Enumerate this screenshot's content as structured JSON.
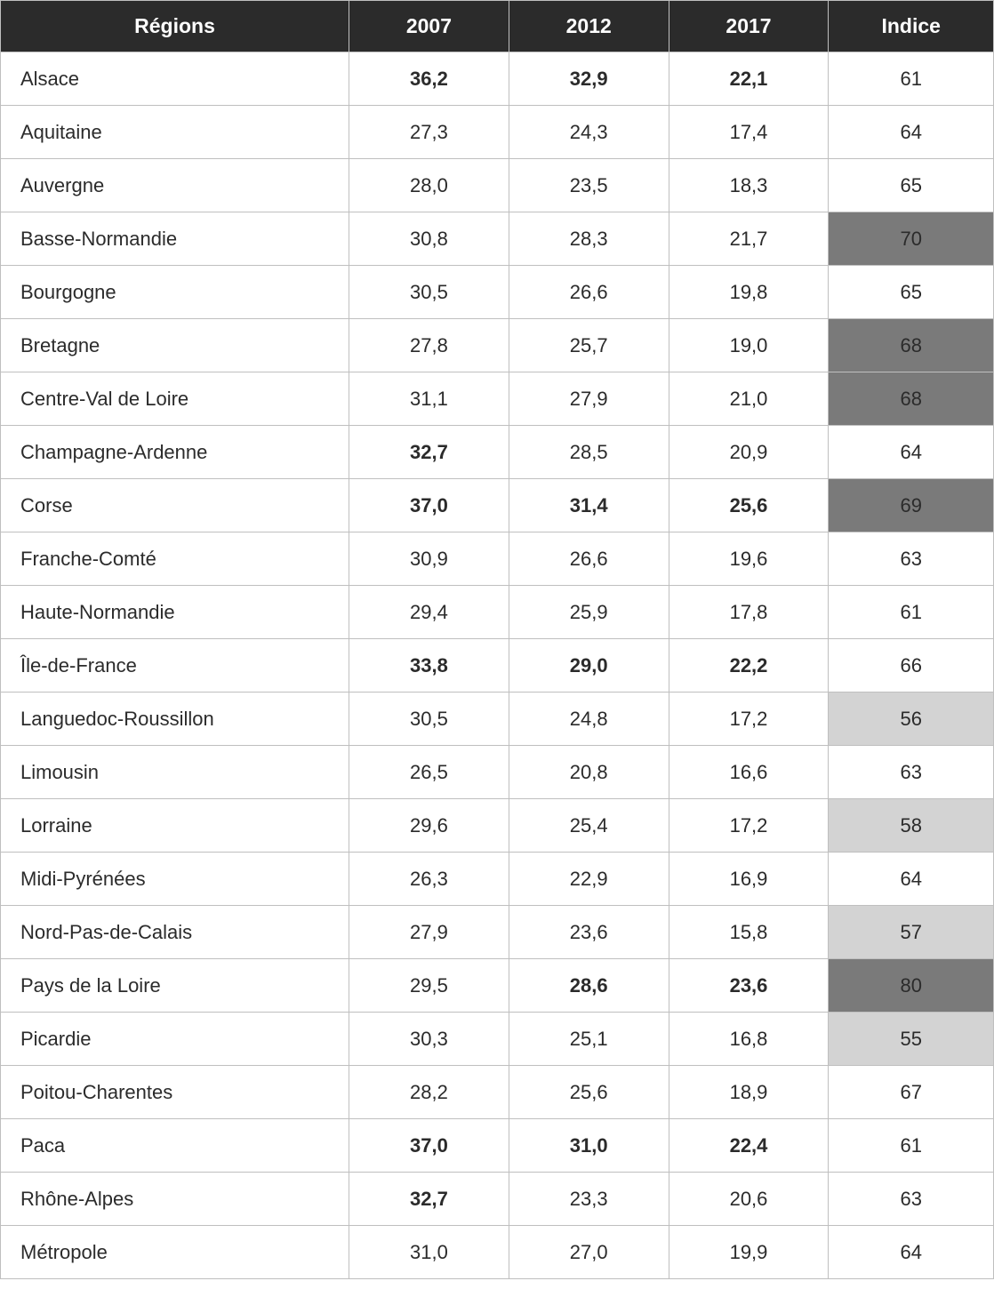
{
  "table": {
    "columns": [
      "Régions",
      "2007",
      "2012",
      "2017",
      "Indice"
    ],
    "header_bg": "#2b2b2b",
    "header_fg": "#ffffff",
    "border_color": "#bfbfbf",
    "highlight_dark": "#7a7a7a",
    "highlight_light": "#d3d3d3",
    "rows": [
      {
        "region": "Alsace",
        "y2007": "36,2",
        "b2007": true,
        "y2012": "32,9",
        "b2012": true,
        "y2017": "22,1",
        "b2017": true,
        "indice": "61",
        "indice_bg": null
      },
      {
        "region": "Aquitaine",
        "y2007": "27,3",
        "b2007": false,
        "y2012": "24,3",
        "b2012": false,
        "y2017": "17,4",
        "b2017": false,
        "indice": "64",
        "indice_bg": null
      },
      {
        "region": "Auvergne",
        "y2007": "28,0",
        "b2007": false,
        "y2012": "23,5",
        "b2012": false,
        "y2017": "18,3",
        "b2017": false,
        "indice": "65",
        "indice_bg": null
      },
      {
        "region": "Basse-Normandie",
        "y2007": "30,8",
        "b2007": false,
        "y2012": "28,3",
        "b2012": false,
        "y2017": "21,7",
        "b2017": false,
        "indice": "70",
        "indice_bg": "dark"
      },
      {
        "region": "Bourgogne",
        "y2007": "30,5",
        "b2007": false,
        "y2012": "26,6",
        "b2012": false,
        "y2017": "19,8",
        "b2017": false,
        "indice": "65",
        "indice_bg": null
      },
      {
        "region": "Bretagne",
        "y2007": "27,8",
        "b2007": false,
        "y2012": "25,7",
        "b2012": false,
        "y2017": "19,0",
        "b2017": false,
        "indice": "68",
        "indice_bg": "dark"
      },
      {
        "region": "Centre-Val de Loire",
        "y2007": "31,1",
        "b2007": false,
        "y2012": "27,9",
        "b2012": false,
        "y2017": "21,0",
        "b2017": false,
        "indice": "68",
        "indice_bg": "dark"
      },
      {
        "region": "Champagne-Ardenne",
        "y2007": "32,7",
        "b2007": true,
        "y2012": "28,5",
        "b2012": false,
        "y2017": "20,9",
        "b2017": false,
        "indice": "64",
        "indice_bg": null
      },
      {
        "region": "Corse",
        "y2007": "37,0",
        "b2007": true,
        "y2012": "31,4",
        "b2012": true,
        "y2017": "25,6",
        "b2017": true,
        "indice": "69",
        "indice_bg": "dark"
      },
      {
        "region": "Franche-Comté",
        "y2007": "30,9",
        "b2007": false,
        "y2012": "26,6",
        "b2012": false,
        "y2017": "19,6",
        "b2017": false,
        "indice": "63",
        "indice_bg": null
      },
      {
        "region": "Haute-Normandie",
        "y2007": "29,4",
        "b2007": false,
        "y2012": "25,9",
        "b2012": false,
        "y2017": "17,8",
        "b2017": false,
        "indice": "61",
        "indice_bg": null
      },
      {
        "region": "Île-de-France",
        "y2007": "33,8",
        "b2007": true,
        "y2012": "29,0",
        "b2012": true,
        "y2017": "22,2",
        "b2017": true,
        "indice": "66",
        "indice_bg": null
      },
      {
        "region": "Languedoc-Roussillon",
        "y2007": "30,5",
        "b2007": false,
        "y2012": "24,8",
        "b2012": false,
        "y2017": "17,2",
        "b2017": false,
        "indice": "56",
        "indice_bg": "light"
      },
      {
        "region": "Limousin",
        "y2007": "26,5",
        "b2007": false,
        "y2012": "20,8",
        "b2012": false,
        "y2017": "16,6",
        "b2017": false,
        "indice": "63",
        "indice_bg": null
      },
      {
        "region": "Lorraine",
        "y2007": "29,6",
        "b2007": false,
        "y2012": "25,4",
        "b2012": false,
        "y2017": "17,2",
        "b2017": false,
        "indice": "58",
        "indice_bg": "light"
      },
      {
        "region": "Midi-Pyrénées",
        "y2007": "26,3",
        "b2007": false,
        "y2012": "22,9",
        "b2012": false,
        "y2017": "16,9",
        "b2017": false,
        "indice": "64",
        "indice_bg": null
      },
      {
        "region": "Nord-Pas-de-Calais",
        "y2007": "27,9",
        "b2007": false,
        "y2012": "23,6",
        "b2012": false,
        "y2017": "15,8",
        "b2017": false,
        "indice": "57",
        "indice_bg": "light"
      },
      {
        "region": "Pays de la Loire",
        "y2007": "29,5",
        "b2007": false,
        "y2012": "28,6",
        "b2012": true,
        "y2017": "23,6",
        "b2017": true,
        "indice": "80",
        "indice_bg": "dark"
      },
      {
        "region": "Picardie",
        "y2007": "30,3",
        "b2007": false,
        "y2012": "25,1",
        "b2012": false,
        "y2017": "16,8",
        "b2017": false,
        "indice": "55",
        "indice_bg": "light"
      },
      {
        "region": "Poitou-Charentes",
        "y2007": "28,2",
        "b2007": false,
        "y2012": "25,6",
        "b2012": false,
        "y2017": "18,9",
        "b2017": false,
        "indice": "67",
        "indice_bg": null
      },
      {
        "region": "Paca",
        "y2007": "37,0",
        "b2007": true,
        "y2012": "31,0",
        "b2012": true,
        "y2017": "22,4",
        "b2017": true,
        "indice": "61",
        "indice_bg": null
      },
      {
        "region": "Rhône-Alpes",
        "y2007": "32,7",
        "b2007": true,
        "y2012": "23,3",
        "b2012": false,
        "y2017": "20,6",
        "b2017": false,
        "indice": "63",
        "indice_bg": null
      },
      {
        "region": "Métropole",
        "y2007": "31,0",
        "b2007": false,
        "y2012": "27,0",
        "b2012": false,
        "y2017": "19,9",
        "b2017": false,
        "indice": "64",
        "indice_bg": null
      }
    ]
  }
}
